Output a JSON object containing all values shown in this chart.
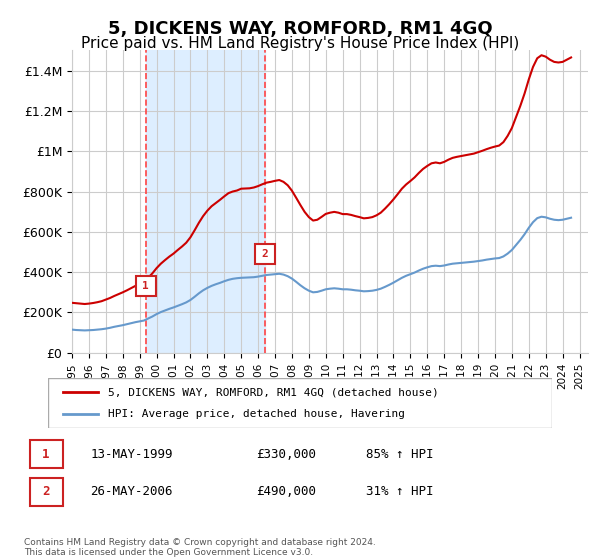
{
  "title": "5, DICKENS WAY, ROMFORD, RM1 4GQ",
  "subtitle": "Price paid vs. HM Land Registry's House Price Index (HPI)",
  "title_fontsize": 13,
  "subtitle_fontsize": 11,
  "ylabel_ticks": [
    "£0",
    "£200K",
    "£400K",
    "£600K",
    "£800K",
    "£1M",
    "£1.2M",
    "£1.4M"
  ],
  "ytick_values": [
    0,
    200000,
    400000,
    600000,
    800000,
    1000000,
    1200000,
    1400000
  ],
  "ylim": [
    0,
    1500000
  ],
  "xlim_start": 1995.0,
  "xlim_end": 2025.5,
  "sale1_x": 1999.36,
  "sale1_y": 330000,
  "sale1_label": "1",
  "sale2_x": 2006.39,
  "sale2_y": 490000,
  "sale2_label": "2",
  "red_line_color": "#cc0000",
  "blue_line_color": "#6699cc",
  "shade_color": "#ddeeff",
  "vline_color": "#ff4444",
  "legend_label_red": "5, DICKENS WAY, ROMFORD, RM1 4GQ (detached house)",
  "legend_label_blue": "HPI: Average price, detached house, Havering",
  "table_row1": [
    "1",
    "13-MAY-1999",
    "£330,000",
    "85% ↑ HPI"
  ],
  "table_row2": [
    "2",
    "26-MAY-2006",
    "£490,000",
    "31% ↑ HPI"
  ],
  "footnote": "Contains HM Land Registry data © Crown copyright and database right 2024.\nThis data is licensed under the Open Government Licence v3.0.",
  "hpi_data_x": [
    1995.0,
    1995.25,
    1995.5,
    1995.75,
    1996.0,
    1996.25,
    1996.5,
    1996.75,
    1997.0,
    1997.25,
    1997.5,
    1997.75,
    1998.0,
    1998.25,
    1998.5,
    1998.75,
    1999.0,
    1999.25,
    1999.5,
    1999.75,
    2000.0,
    2000.25,
    2000.5,
    2000.75,
    2001.0,
    2001.25,
    2001.5,
    2001.75,
    2002.0,
    2002.25,
    2002.5,
    2002.75,
    2003.0,
    2003.25,
    2003.5,
    2003.75,
    2004.0,
    2004.25,
    2004.5,
    2004.75,
    2005.0,
    2005.25,
    2005.5,
    2005.75,
    2006.0,
    2006.25,
    2006.5,
    2006.75,
    2007.0,
    2007.25,
    2007.5,
    2007.75,
    2008.0,
    2008.25,
    2008.5,
    2008.75,
    2009.0,
    2009.25,
    2009.5,
    2009.75,
    2010.0,
    2010.25,
    2010.5,
    2010.75,
    2011.0,
    2011.25,
    2011.5,
    2011.75,
    2012.0,
    2012.25,
    2012.5,
    2012.75,
    2013.0,
    2013.25,
    2013.5,
    2013.75,
    2014.0,
    2014.25,
    2014.5,
    2014.75,
    2015.0,
    2015.25,
    2015.5,
    2015.75,
    2016.0,
    2016.25,
    2016.5,
    2016.75,
    2017.0,
    2017.25,
    2017.5,
    2017.75,
    2018.0,
    2018.25,
    2018.5,
    2018.75,
    2019.0,
    2019.25,
    2019.5,
    2019.75,
    2020.0,
    2020.25,
    2020.5,
    2020.75,
    2021.0,
    2021.25,
    2021.5,
    2021.75,
    2022.0,
    2022.25,
    2022.5,
    2022.75,
    2023.0,
    2023.25,
    2023.5,
    2023.75,
    2024.0,
    2024.25,
    2024.5
  ],
  "hpi_data_y": [
    115000,
    113000,
    112000,
    111000,
    112000,
    113000,
    115000,
    117000,
    120000,
    124000,
    129000,
    133000,
    137000,
    142000,
    147000,
    152000,
    156000,
    160000,
    170000,
    180000,
    192000,
    202000,
    210000,
    218000,
    225000,
    233000,
    241000,
    250000,
    262000,
    278000,
    295000,
    310000,
    322000,
    332000,
    340000,
    347000,
    355000,
    362000,
    367000,
    370000,
    372000,
    373000,
    374000,
    375000,
    378000,
    382000,
    386000,
    388000,
    390000,
    392000,
    388000,
    380000,
    368000,
    352000,
    335000,
    320000,
    308000,
    300000,
    302000,
    308000,
    315000,
    318000,
    320000,
    318000,
    315000,
    315000,
    313000,
    310000,
    308000,
    305000,
    306000,
    308000,
    312000,
    318000,
    327000,
    337000,
    348000,
    360000,
    372000,
    382000,
    390000,
    398000,
    408000,
    417000,
    424000,
    430000,
    432000,
    430000,
    433000,
    438000,
    442000,
    444000,
    446000,
    448000,
    450000,
    452000,
    455000,
    458000,
    462000,
    465000,
    468000,
    470000,
    478000,
    492000,
    510000,
    535000,
    560000,
    588000,
    620000,
    648000,
    668000,
    675000,
    672000,
    665000,
    660000,
    658000,
    660000,
    665000,
    670000
  ],
  "red_data_x": [
    1995.0,
    1995.25,
    1995.5,
    1995.75,
    1996.0,
    1996.25,
    1996.5,
    1996.75,
    1997.0,
    1997.25,
    1997.5,
    1997.75,
    1998.0,
    1998.25,
    1998.5,
    1998.75,
    1999.0,
    1999.25,
    1999.5,
    1999.75,
    2000.0,
    2000.25,
    2000.5,
    2000.75,
    2001.0,
    2001.25,
    2001.5,
    2001.75,
    2002.0,
    2002.25,
    2002.5,
    2002.75,
    2003.0,
    2003.25,
    2003.5,
    2003.75,
    2004.0,
    2004.25,
    2004.5,
    2004.75,
    2005.0,
    2005.25,
    2005.5,
    2005.75,
    2006.0,
    2006.25,
    2006.5,
    2006.75,
    2007.0,
    2007.25,
    2007.5,
    2007.75,
    2008.0,
    2008.25,
    2008.5,
    2008.75,
    2009.0,
    2009.25,
    2009.5,
    2009.75,
    2010.0,
    2010.25,
    2010.5,
    2010.75,
    2011.0,
    2011.25,
    2011.5,
    2011.75,
    2012.0,
    2012.25,
    2012.5,
    2012.75,
    2013.0,
    2013.25,
    2013.5,
    2013.75,
    2014.0,
    2014.25,
    2014.5,
    2014.75,
    2015.0,
    2015.25,
    2015.5,
    2015.75,
    2016.0,
    2016.25,
    2016.5,
    2016.75,
    2017.0,
    2017.25,
    2017.5,
    2017.75,
    2018.0,
    2018.25,
    2018.5,
    2018.75,
    2019.0,
    2019.25,
    2019.5,
    2019.75,
    2020.0,
    2020.25,
    2020.5,
    2020.75,
    2021.0,
    2021.25,
    2021.5,
    2021.75,
    2022.0,
    2022.25,
    2022.5,
    2022.75,
    2023.0,
    2023.25,
    2023.5,
    2023.75,
    2024.0,
    2024.25,
    2024.5
  ],
  "red_data_y": [
    248000,
    246000,
    244000,
    242000,
    244000,
    247000,
    251000,
    256000,
    264000,
    272000,
    282000,
    291000,
    300000,
    310000,
    321000,
    332000,
    341000,
    350000,
    372000,
    394000,
    420000,
    442000,
    460000,
    477000,
    492000,
    510000,
    527000,
    546000,
    573000,
    608000,
    645000,
    678000,
    705000,
    727000,
    743000,
    759000,
    776000,
    792000,
    800000,
    805000,
    814000,
    815000,
    816000,
    820000,
    827000,
    836000,
    844000,
    848000,
    853000,
    857000,
    848000,
    831000,
    804000,
    769000,
    733000,
    699000,
    673000,
    656000,
    660000,
    674000,
    689000,
    695000,
    699000,
    695000,
    688000,
    688000,
    684000,
    678000,
    673000,
    667000,
    669000,
    673000,
    682000,
    695000,
    715000,
    737000,
    761000,
    787000,
    814000,
    835000,
    852000,
    870000,
    892000,
    912000,
    927000,
    940000,
    944000,
    940000,
    947000,
    958000,
    967000,
    972000,
    976000,
    980000,
    984000,
    988000,
    995000,
    1002000,
    1010000,
    1017000,
    1023000,
    1028000,
    1045000,
    1076000,
    1115000,
    1170000,
    1225000,
    1286000,
    1356000,
    1418000,
    1461000,
    1476000,
    1469000,
    1454000,
    1443000,
    1440000,
    1443000,
    1454000,
    1465000
  ]
}
